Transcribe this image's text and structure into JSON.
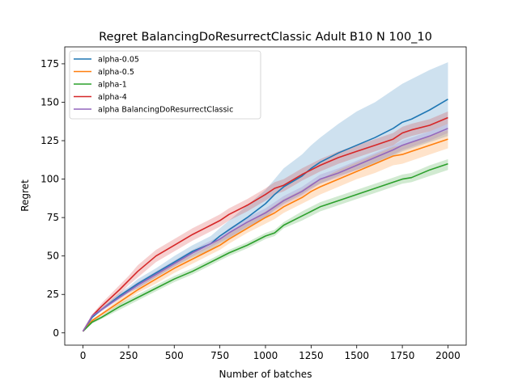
{
  "chart_data": {
    "type": "line",
    "title": "Regret BalancingDoResurrectClassic Adult B10 N 100_10",
    "xlabel": "Number of batches",
    "ylabel": "Regret",
    "xlim": [
      -100,
      2100
    ],
    "ylim": [
      -8,
      186
    ],
    "xticks": [
      0,
      250,
      500,
      750,
      1000,
      1250,
      1500,
      1750,
      2000
    ],
    "yticks": [
      0,
      25,
      50,
      75,
      100,
      125,
      150,
      175
    ],
    "grid": false,
    "legend_position": "top-left",
    "x": [
      0,
      50,
      100,
      200,
      250,
      300,
      400,
      500,
      600,
      700,
      750,
      800,
      900,
      1000,
      1050,
      1100,
      1200,
      1250,
      1300,
      1400,
      1500,
      1600,
      1700,
      1750,
      1800,
      1900,
      2000
    ],
    "series": [
      {
        "name": "alpha-0.05",
        "color": "#1f77b4",
        "values": [
          1,
          10,
          15,
          24,
          28,
          32,
          39,
          46,
          53,
          58,
          63,
          67,
          75,
          84,
          90,
          95,
          102,
          107,
          111,
          117,
          122,
          127,
          133,
          137,
          139,
          145,
          152
        ],
        "lower": [
          1,
          10,
          14,
          22,
          26,
          29,
          36,
          43,
          49,
          54,
          58,
          61,
          68,
          75,
          80,
          84,
          90,
          94,
          97,
          102,
          106,
          110,
          115,
          118,
          120,
          124,
          128
        ],
        "upper": [
          1,
          11,
          16,
          26,
          30,
          35,
          42,
          50,
          57,
          63,
          68,
          73,
          83,
          93,
          100,
          107,
          116,
          122,
          127,
          136,
          144,
          150,
          158,
          162,
          165,
          171,
          176
        ]
      },
      {
        "name": "alpha-0.5",
        "color": "#ff7f0e",
        "values": [
          1,
          8,
          12,
          20,
          24,
          28,
          35,
          42,
          48,
          54,
          57,
          61,
          68,
          75,
          78,
          82,
          88,
          92,
          95,
          100,
          105,
          110,
          115,
          116,
          118,
          122,
          126
        ],
        "lower": [
          1,
          7,
          11,
          18,
          22,
          26,
          32,
          39,
          45,
          51,
          54,
          58,
          65,
          71,
          74,
          78,
          84,
          87,
          90,
          95,
          100,
          104,
          109,
          110,
          112,
          116,
          120
        ],
        "upper": [
          1,
          9,
          13,
          22,
          26,
          30,
          38,
          45,
          51,
          57,
          61,
          65,
          72,
          79,
          83,
          87,
          93,
          97,
          100,
          106,
          111,
          116,
          121,
          122,
          124,
          128,
          132
        ]
      },
      {
        "name": "alpha-1",
        "color": "#2ca02c",
        "values": [
          1,
          7,
          10,
          17,
          20,
          23,
          29,
          35,
          40,
          46,
          49,
          52,
          57,
          63,
          65,
          70,
          76,
          79,
          82,
          86,
          90,
          94,
          98,
          100,
          101,
          106,
          110
        ],
        "lower": [
          1,
          6,
          9,
          15,
          18,
          21,
          27,
          33,
          38,
          44,
          47,
          50,
          55,
          61,
          63,
          68,
          73,
          76,
          79,
          83,
          87,
          91,
          95,
          97,
          98,
          102,
          106
        ],
        "upper": [
          1,
          8,
          11,
          19,
          22,
          25,
          31,
          37,
          42,
          48,
          51,
          54,
          59,
          65,
          67,
          72,
          79,
          82,
          85,
          89,
          93,
          97,
          101,
          103,
          104,
          109,
          113
        ]
      },
      {
        "name": "alpha-4",
        "color": "#d62728",
        "values": [
          1,
          11,
          17,
          28,
          34,
          40,
          50,
          57,
          64,
          70,
          73,
          77,
          83,
          90,
          94,
          96,
          103,
          106,
          109,
          114,
          118,
          122,
          126,
          130,
          132,
          135,
          140
        ],
        "lower": [
          1,
          10,
          15,
          25,
          31,
          36,
          46,
          53,
          60,
          66,
          69,
          73,
          79,
          86,
          90,
          92,
          99,
          102,
          105,
          110,
          114,
          118,
          122,
          126,
          128,
          131,
          136
        ],
        "upper": [
          1,
          12,
          19,
          31,
          37,
          44,
          54,
          61,
          68,
          74,
          77,
          81,
          87,
          94,
          98,
          100,
          107,
          110,
          113,
          118,
          122,
          126,
          130,
          134,
          136,
          139,
          144
        ]
      },
      {
        "name": "alpha BalancingDoResurrectClassic",
        "color": "#9467bd",
        "values": [
          1,
          11,
          15,
          23,
          27,
          31,
          38,
          45,
          52,
          58,
          61,
          65,
          72,
          78,
          82,
          86,
          92,
          96,
          100,
          104,
          109,
          114,
          119,
          122,
          124,
          128,
          133
        ],
        "lower": [
          1,
          10,
          14,
          22,
          26,
          29,
          36,
          43,
          50,
          56,
          59,
          62,
          69,
          75,
          79,
          83,
          89,
          93,
          97,
          101,
          106,
          111,
          116,
          119,
          121,
          125,
          130
        ],
        "upper": [
          1,
          12,
          16,
          25,
          29,
          33,
          40,
          47,
          54,
          60,
          63,
          68,
          75,
          81,
          85,
          89,
          95,
          99,
          103,
          107,
          112,
          117,
          122,
          125,
          127,
          131,
          136
        ]
      }
    ]
  }
}
